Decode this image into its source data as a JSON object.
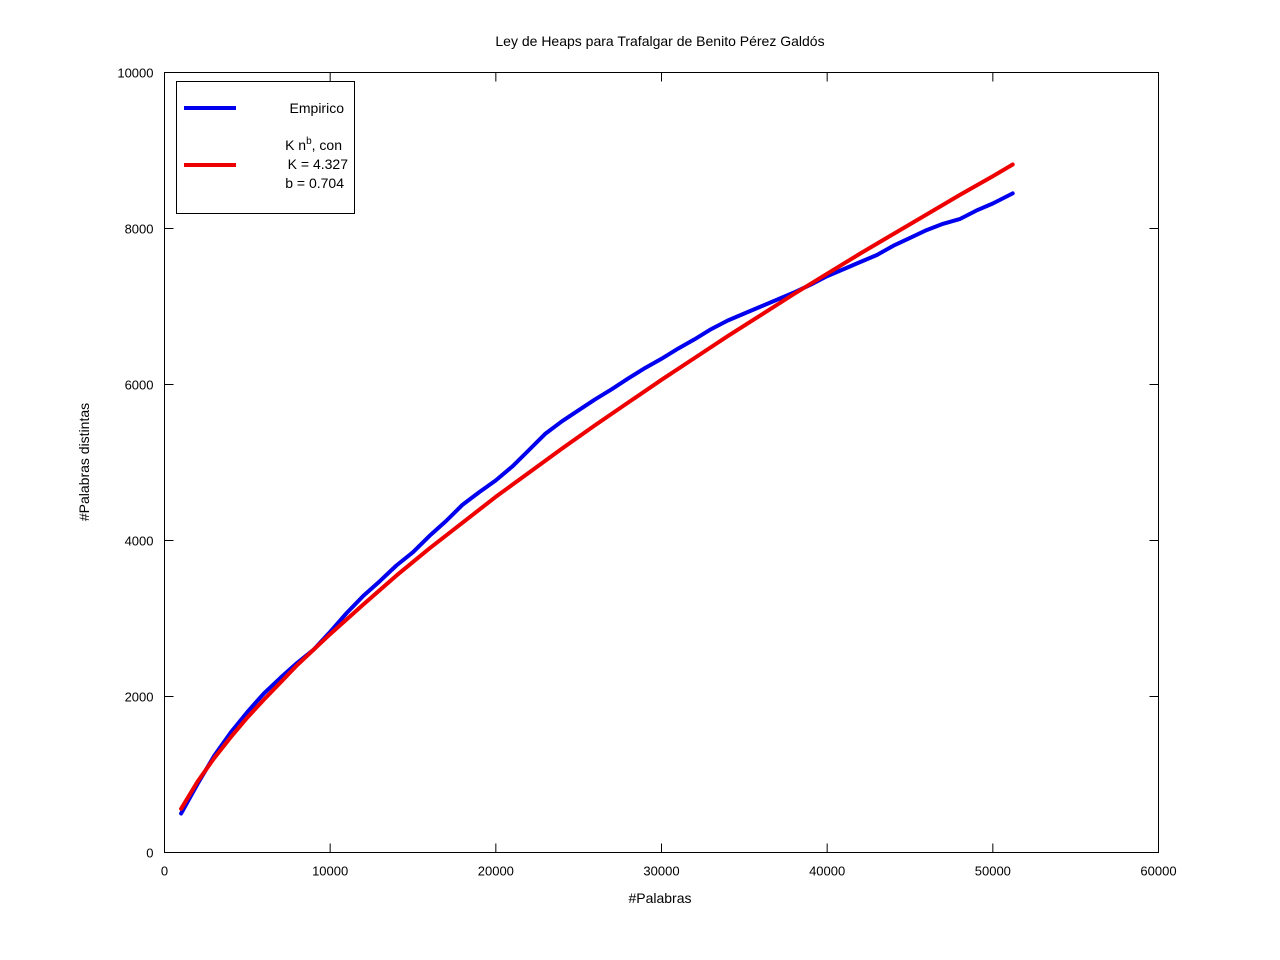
{
  "chart_data": {
    "type": "line",
    "title": "Ley de Heaps para Trafalgar de Benito Pérez Galdós",
    "xlabel": "#Palabras",
    "ylabel": "#Palabras distintas",
    "xlim": [
      0,
      60000
    ],
    "ylim": [
      0,
      10000
    ],
    "xticks": [
      0,
      10000,
      20000,
      30000,
      40000,
      50000,
      60000
    ],
    "yticks": [
      0,
      2000,
      4000,
      6000,
      8000,
      10000
    ],
    "xtick_labels": [
      "0",
      "10000",
      "20000",
      "30000",
      "40000",
      "50000",
      "60000"
    ],
    "ytick_labels": [
      "0",
      "2000",
      "4000",
      "6000",
      "8000",
      "10000"
    ],
    "grid": false,
    "legend_position": "top-left",
    "legend": {
      "empirico": "Empirico",
      "fit_line1_base": "K n",
      "fit_line1_exp": "b",
      "fit_line1_tail": ", con",
      "fit_line2": "K = 4.327",
      "fit_line3": "b = 0.704"
    },
    "series": [
      {
        "name": "Empirico",
        "color": "#0000ee",
        "x": [
          1000,
          2000,
          3000,
          4000,
          5000,
          6000,
          7000,
          8000,
          9000,
          10000,
          11000,
          12000,
          13000,
          14000,
          15000,
          16000,
          17000,
          18000,
          19000,
          20000,
          21000,
          22000,
          23000,
          24000,
          25000,
          26000,
          27000,
          28000,
          29000,
          30000,
          31000,
          32000,
          33000,
          34000,
          35000,
          36000,
          37000,
          38000,
          39000,
          40000,
          41000,
          42000,
          43000,
          44000,
          45000,
          46000,
          47000,
          48000,
          49000,
          50000,
          51200
        ],
        "y": [
          500,
          880,
          1240,
          1540,
          1800,
          2040,
          2240,
          2430,
          2600,
          2830,
          3070,
          3290,
          3480,
          3680,
          3850,
          4060,
          4250,
          4460,
          4620,
          4770,
          4950,
          5160,
          5370,
          5530,
          5670,
          5810,
          5940,
          6080,
          6210,
          6330,
          6460,
          6580,
          6710,
          6820,
          6910,
          7000,
          7090,
          7180,
          7280,
          7390,
          7480,
          7570,
          7660,
          7780,
          7880,
          7980,
          8060,
          8120,
          8230,
          8320,
          8450
        ]
      },
      {
        "name": "K n^b, con K = 4.327, b = 0.704",
        "color": "#ee0000",
        "x": [
          1000,
          2000,
          3000,
          4000,
          5000,
          6000,
          7000,
          8000,
          9000,
          10000,
          12000,
          14000,
          16000,
          18000,
          20000,
          22000,
          24000,
          26000,
          28000,
          30000,
          32000,
          34000,
          36000,
          38000,
          40000,
          42000,
          44000,
          46000,
          48000,
          50000,
          51200
        ],
        "y": [
          560,
          910,
          1210,
          1480,
          1730,
          1960,
          2180,
          2400,
          2600,
          2800,
          3180,
          3550,
          3900,
          4230,
          4560,
          4870,
          5180,
          5480,
          5770,
          6060,
          6340,
          6620,
          6890,
          7160,
          7420,
          7680,
          7930,
          8180,
          8430,
          8670,
          8820
        ]
      }
    ]
  }
}
